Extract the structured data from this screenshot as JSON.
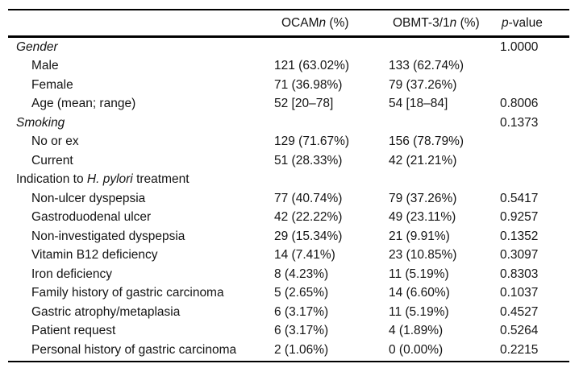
{
  "table": {
    "header": {
      "ocam": {
        "prefix": "OCAM",
        "n": "n",
        "suffix": " (%)"
      },
      "obmt": {
        "prefix": "OBMT-3/1",
        "n": "n",
        "suffix": " (%)"
      },
      "pvalue": {
        "italic": "p",
        "suffix": "-value"
      }
    },
    "rows": [
      {
        "label": "Gender",
        "ocam": "",
        "obmt": "",
        "p": "1.0000"
      },
      {
        "label": "Male",
        "ocam": "121 (63.02%)",
        "obmt": "133 (62.74%)",
        "p": ""
      },
      {
        "label": "Female",
        "ocam": "71 (36.98%)",
        "obmt": "79 (37.26%)",
        "p": ""
      },
      {
        "label": "Age (mean; range)",
        "ocam": "52 [20–78]",
        "obmt": "54 [18–84]",
        "p": "0.8006"
      },
      {
        "label": "Smoking",
        "ocam": "",
        "obmt": "",
        "p": "0.1373"
      },
      {
        "label": "No or ex",
        "ocam": "129 (71.67%)",
        "obmt": "156 (78.79%)",
        "p": ""
      },
      {
        "label": "Current",
        "ocam": "51 (28.33%)",
        "obmt": "42 (21.21%)",
        "p": ""
      },
      {
        "label_prefix": "Indication to ",
        "label_italic": "H. pylori",
        "label_suffix": " treatment",
        "ocam": "",
        "obmt": "",
        "p": ""
      },
      {
        "label": "Non-ulcer dyspepsia",
        "ocam": "77 (40.74%)",
        "obmt": "79 (37.26%)",
        "p": "0.5417"
      },
      {
        "label": "Gastroduodenal ulcer",
        "ocam": "42 (22.22%)",
        "obmt": "49 (23.11%)",
        "p": "0.9257"
      },
      {
        "label": "Non-investigated dyspepsia",
        "ocam": "29 (15.34%)",
        "obmt": "21 (9.91%)",
        "p": "0.1352"
      },
      {
        "label": "Vitamin B12 deficiency",
        "ocam": "14 (7.41%)",
        "obmt": "23 (10.85%)",
        "p": "0.3097"
      },
      {
        "label": "Iron deficiency",
        "ocam": "8 (4.23%)",
        "obmt": "11 (5.19%)",
        "p": "0.8303"
      },
      {
        "label": "Family history of gastric carcinoma",
        "ocam": "5 (2.65%)",
        "obmt": "14 (6.60%)",
        "p": "0.1037"
      },
      {
        "label": "Gastric atrophy/metaplasia",
        "ocam": "6 (3.17%)",
        "obmt": "11 (5.19%)",
        "p": "0.4527"
      },
      {
        "label": "Patient request",
        "ocam": "6 (3.17%)",
        "obmt": "4 (1.89%)",
        "p": "0.5264"
      },
      {
        "label": "Personal history of gastric carcinoma",
        "ocam": "2 (1.06%)",
        "obmt": "0 (0.00%)",
        "p": "0.2215"
      }
    ]
  }
}
